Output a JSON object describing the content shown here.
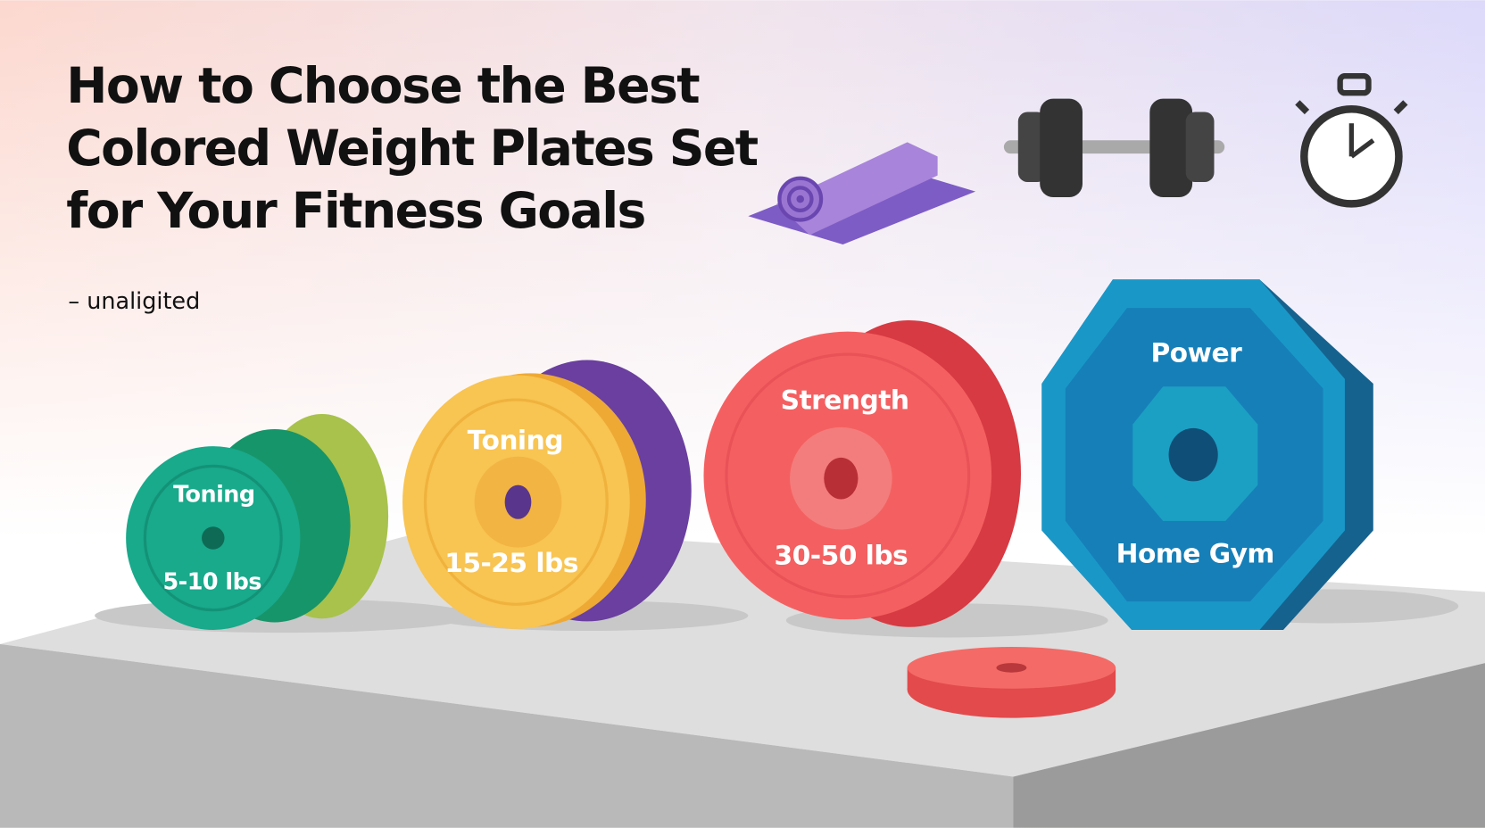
{
  "header": {
    "title_lines": [
      "How to Choose the Best",
      "Colored Weight Plates Set",
      "for Your Fitness Goals"
    ],
    "byline": "– unaligited"
  },
  "plates": [
    {
      "top": "Toning",
      "bottom": "5-10 lbs"
    },
    {
      "top": "Toning",
      "bottom": "15-25 lbs"
    },
    {
      "top": "Strength",
      "bottom": "30-50 lbs"
    },
    {
      "top": "Power",
      "bottom": "Home Gym"
    }
  ]
}
